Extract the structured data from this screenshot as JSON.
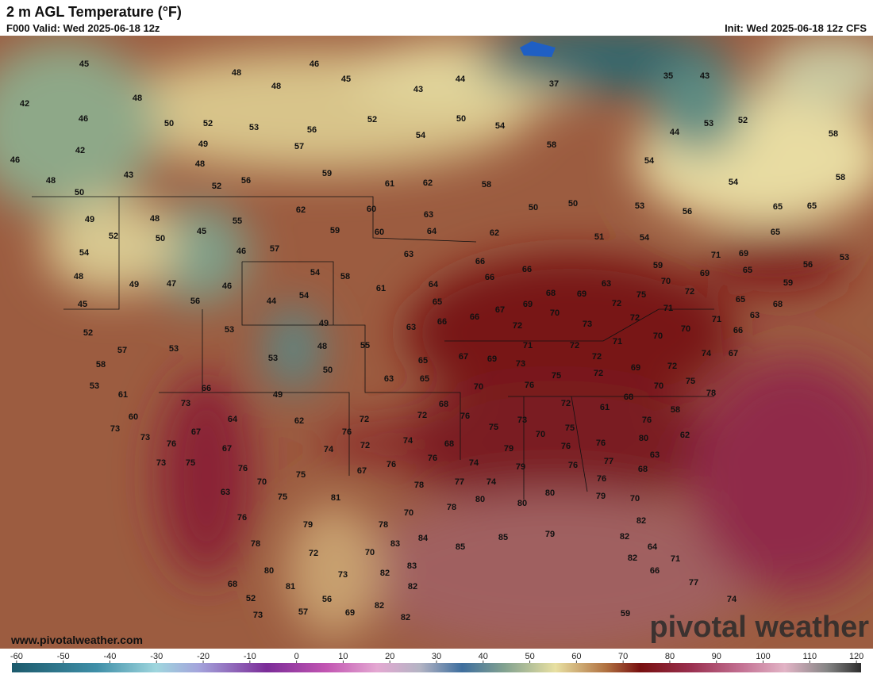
{
  "header": {
    "title": "2 m AGL Temperature (°F)",
    "valid": "F000 Valid: Wed 2025-06-18 12z",
    "init": "Init: Wed 2025-06-18 12z CFS"
  },
  "map": {
    "station_values": [
      45,
      48,
      46,
      45,
      48,
      44,
      43,
      37,
      35,
      43,
      42,
      48,
      46,
      50,
      52,
      53,
      56,
      52,
      50,
      54,
      53,
      52,
      58,
      42,
      49,
      57,
      54,
      58,
      44,
      46,
      43,
      48,
      59,
      54,
      48,
      52,
      56,
      61,
      62,
      58,
      54,
      58,
      50,
      62,
      60,
      63,
      50,
      50,
      53,
      56,
      65,
      65,
      49,
      48,
      55,
      59,
      60,
      64,
      62,
      51,
      54,
      65,
      52,
      50,
      45,
      46,
      57,
      63,
      66,
      54,
      71,
      69,
      53,
      56,
      66,
      59,
      65,
      69,
      54,
      58,
      66,
      48,
      49,
      47,
      46,
      64,
      70,
      63,
      59,
      61,
      54,
      44,
      68,
      69,
      72,
      75,
      65,
      45,
      56,
      65,
      69,
      72,
      71,
      68,
      67,
      70,
      66,
      49,
      66,
      63,
      72,
      73,
      72,
      63,
      53,
      52,
      70,
      71,
      66,
      70,
      57,
      53,
      48,
      55,
      71,
      72,
      71,
      74,
      67,
      53,
      67,
      69,
      72,
      65,
      73,
      72,
      58,
      50,
      75,
      72,
      69,
      63,
      65,
      53,
      66,
      76,
      70,
      75,
      78,
      61,
      49,
      70,
      68,
      73,
      68,
      72,
      61,
      60,
      64,
      72,
      72,
      76,
      73,
      76,
      58,
      62,
      73,
      75,
      67,
      76,
      75,
      70,
      76,
      80,
      62,
      73,
      76,
      74,
      68,
      72,
      67,
      74,
      76,
      79,
      63,
      73,
      75,
      76,
      76,
      74,
      77,
      76,
      79,
      68,
      76,
      67,
      70,
      75,
      76,
      78,
      77,
      74,
      63,
      75,
      81,
      79,
      70,
      80,
      80,
      80,
      78,
      76,
      78,
      70,
      79,
      82,
      78,
      83,
      84,
      85,
      85,
      79,
      82,
      64,
      72,
      70,
      82,
      80,
      83,
      71,
      73,
      82,
      66,
      68,
      81,
      82,
      77,
      52,
      56,
      82,
      74,
      73,
      57,
      69,
      82,
      59
    ]
  },
  "colorbar": {
    "range": [
      -61,
      121
    ],
    "ticks": [
      -60,
      -50,
      -40,
      -30,
      -20,
      -10,
      0,
      10,
      20,
      30,
      40,
      50,
      60,
      70,
      80,
      90,
      100,
      110,
      120
    ]
  },
  "footer": {
    "website": "www.pivotalweather.com",
    "watermark": "pivotal weather"
  }
}
